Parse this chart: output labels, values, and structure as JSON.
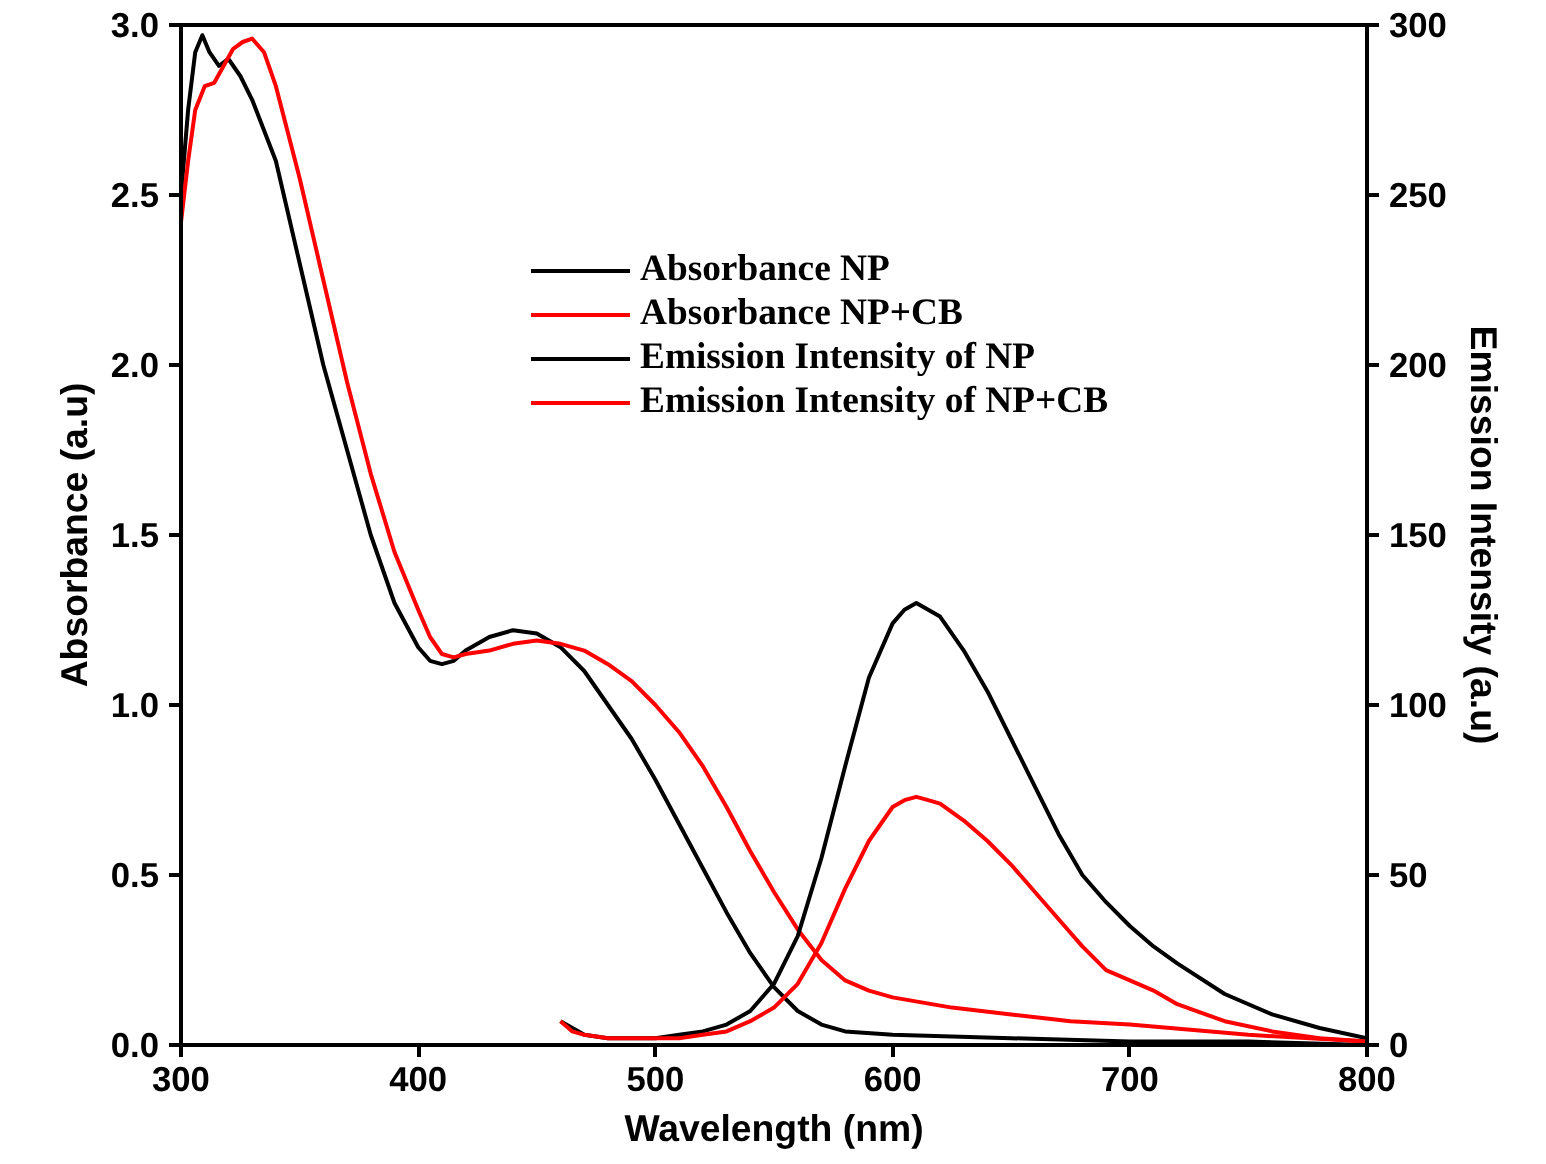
{
  "chart_data": {
    "type": "line",
    "xlabel": "Wavelength (nm)",
    "ylabel": "Absorbance (a.u)",
    "y2label": "Emission Intensity (a.u)",
    "xlim": [
      300,
      800
    ],
    "xticks": [
      300,
      400,
      500,
      600,
      700,
      800
    ],
    "ylim": [
      0,
      3
    ],
    "yticks": [
      {
        "value": 0,
        "label": "0.0"
      },
      0.5,
      {
        "value": 1,
        "label": "1.0"
      },
      1.5,
      {
        "value": 2,
        "label": "2.0"
      },
      2.5,
      {
        "value": 3,
        "label": "3.0"
      }
    ],
    "y2lim": [
      0,
      300
    ],
    "y2ticks": [
      0,
      50,
      100,
      150,
      200,
      250,
      300
    ],
    "grid": false,
    "legend": "top",
    "line_style": "solid",
    "marker": "none",
    "series": [
      {
        "name": "Absorbance NP",
        "color": "#000000",
        "x": [
          300,
          303,
          306,
          309,
          312,
          316,
          320,
          325,
          330,
          340,
          350,
          360,
          370,
          380,
          390,
          400,
          405,
          410,
          415,
          420,
          430,
          440,
          450,
          460,
          470,
          480,
          490,
          500,
          510,
          520,
          530,
          540,
          550,
          560,
          570,
          580,
          600,
          650,
          700,
          750,
          800
        ],
        "values": [
          2.5,
          2.75,
          2.92,
          2.97,
          2.92,
          2.88,
          2.9,
          2.85,
          2.78,
          2.6,
          2.3,
          2.0,
          1.75,
          1.5,
          1.3,
          1.17,
          1.13,
          1.12,
          1.13,
          1.16,
          1.2,
          1.22,
          1.21,
          1.17,
          1.1,
          1.0,
          0.9,
          0.78,
          0.65,
          0.52,
          0.39,
          0.27,
          0.17,
          0.1,
          0.06,
          0.04,
          0.03,
          0.02,
          0.01,
          0.01,
          0.0
        ]
      },
      {
        "name": "Absorbance NP+CB",
        "color": "#ff0000",
        "x": [
          300,
          303,
          306,
          310,
          314,
          318,
          322,
          326,
          330,
          335,
          340,
          350,
          360,
          370,
          380,
          390,
          400,
          405,
          410,
          415,
          420,
          430,
          440,
          450,
          460,
          470,
          480,
          490,
          500,
          510,
          520,
          530,
          540,
          550,
          560,
          570,
          580,
          590,
          600,
          625,
          650,
          675,
          700,
          750,
          800
        ],
        "values": [
          2.42,
          2.6,
          2.75,
          2.82,
          2.83,
          2.88,
          2.93,
          2.95,
          2.96,
          2.92,
          2.82,
          2.55,
          2.25,
          1.95,
          1.68,
          1.45,
          1.28,
          1.2,
          1.15,
          1.14,
          1.15,
          1.16,
          1.18,
          1.19,
          1.18,
          1.16,
          1.12,
          1.07,
          1.0,
          0.92,
          0.82,
          0.7,
          0.57,
          0.45,
          0.34,
          0.25,
          0.19,
          0.16,
          0.14,
          0.11,
          0.09,
          0.07,
          0.06,
          0.03,
          0.01
        ]
      },
      {
        "name": "Emission Intensity of NP",
        "color": "#000000",
        "axis": "y2",
        "x": [
          460,
          465,
          470,
          480,
          490,
          500,
          510,
          520,
          530,
          540,
          550,
          560,
          570,
          580,
          590,
          600,
          605,
          610,
          615,
          620,
          630,
          640,
          650,
          660,
          670,
          680,
          690,
          700,
          710,
          720,
          740,
          760,
          780,
          800
        ],
        "values": [
          7,
          5,
          3,
          2,
          2,
          2,
          3,
          4,
          6,
          10,
          18,
          32,
          55,
          82,
          108,
          124,
          128,
          130,
          128,
          126,
          116,
          104,
          90,
          76,
          62,
          50,
          42,
          35,
          29,
          24,
          15,
          9,
          5,
          2
        ]
      },
      {
        "name": "Emission Intensity of NP+CB",
        "color": "#ff0000",
        "axis": "y2",
        "x": [
          460,
          465,
          470,
          480,
          490,
          500,
          510,
          520,
          530,
          540,
          550,
          560,
          570,
          580,
          590,
          600,
          605,
          610,
          615,
          620,
          630,
          640,
          650,
          660,
          670,
          680,
          690,
          700,
          710,
          720,
          740,
          760,
          780,
          800
        ],
        "values": [
          7,
          4,
          3,
          2,
          2,
          2,
          2,
          3,
          4,
          7,
          11,
          18,
          30,
          46,
          60,
          70,
          72,
          73,
          72,
          71,
          66,
          60,
          53,
          45,
          37,
          29,
          22,
          19,
          16,
          12,
          7,
          4,
          2,
          1
        ]
      }
    ]
  }
}
